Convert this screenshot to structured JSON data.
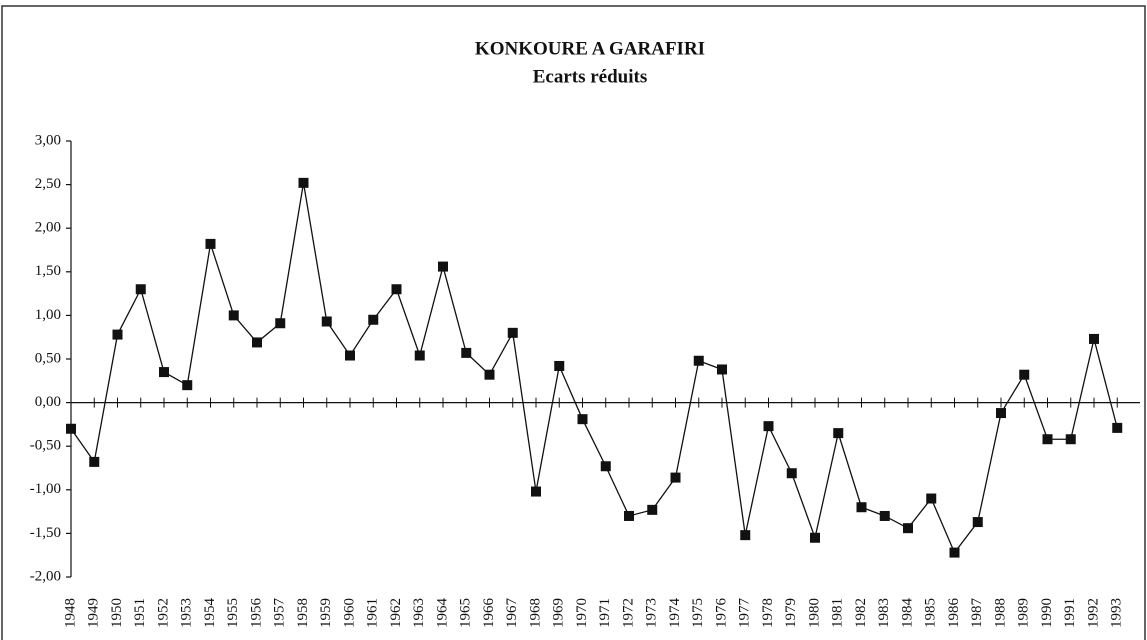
{
  "chart_data": {
    "type": "line",
    "title": "KONKOURE A GARAFIRI",
    "subtitle": "Ecarts réduits",
    "categories": [
      "1948",
      "1949",
      "1950",
      "1951",
      "1952",
      "1953",
      "1954",
      "1955",
      "1956",
      "1957",
      "1958",
      "1959",
      "1960",
      "1961",
      "1962",
      "1963",
      "1964",
      "1965",
      "1966",
      "1967",
      "1968",
      "1969",
      "1970",
      "1971",
      "1972",
      "1973",
      "1974",
      "1975",
      "1976",
      "1977",
      "1978",
      "1979",
      "1980",
      "1981",
      "1982",
      "1983",
      "1984",
      "1985",
      "1986",
      "1987",
      "1988",
      "1989",
      "1990",
      "1991",
      "1992",
      "1993"
    ],
    "series": [
      {
        "color": "#111111",
        "values": [
          -0.3,
          -0.68,
          0.78,
          1.3,
          0.35,
          0.2,
          1.82,
          1.0,
          0.69,
          0.91,
          2.52,
          0.93,
          0.54,
          0.95,
          1.3,
          0.54,
          1.56,
          0.57,
          0.32,
          0.8,
          -1.02,
          0.42,
          -0.19,
          -0.73,
          -1.3,
          -1.23,
          -0.86,
          0.48,
          0.38,
          -1.52,
          -0.27,
          -0.81,
          -1.55,
          -0.35,
          -1.2,
          -1.3,
          -1.44,
          -1.1,
          -1.72,
          -1.37,
          -0.12,
          0.32,
          -0.42,
          -0.42,
          0.73,
          -0.29
        ]
      }
    ],
    "ylim": [
      -2,
      3
    ],
    "yticks": [
      {
        "value": 3,
        "label": "3,00"
      },
      {
        "value": 2.5,
        "label": "2,50"
      },
      {
        "value": 2,
        "label": "2,00"
      },
      {
        "value": 1.5,
        "label": "1,50"
      },
      {
        "value": 1,
        "label": "1,00"
      },
      {
        "value": 0.5,
        "label": "0,50"
      },
      {
        "value": 0,
        "label": "0,00"
      },
      {
        "value": -0.5,
        "label": "-0,50"
      },
      {
        "value": -1,
        "label": "-1,00"
      },
      {
        "value": -1.5,
        "label": "-1,50"
      },
      {
        "value": -2,
        "label": "-2,00"
      }
    ],
    "grid": false,
    "marker": "square"
  }
}
